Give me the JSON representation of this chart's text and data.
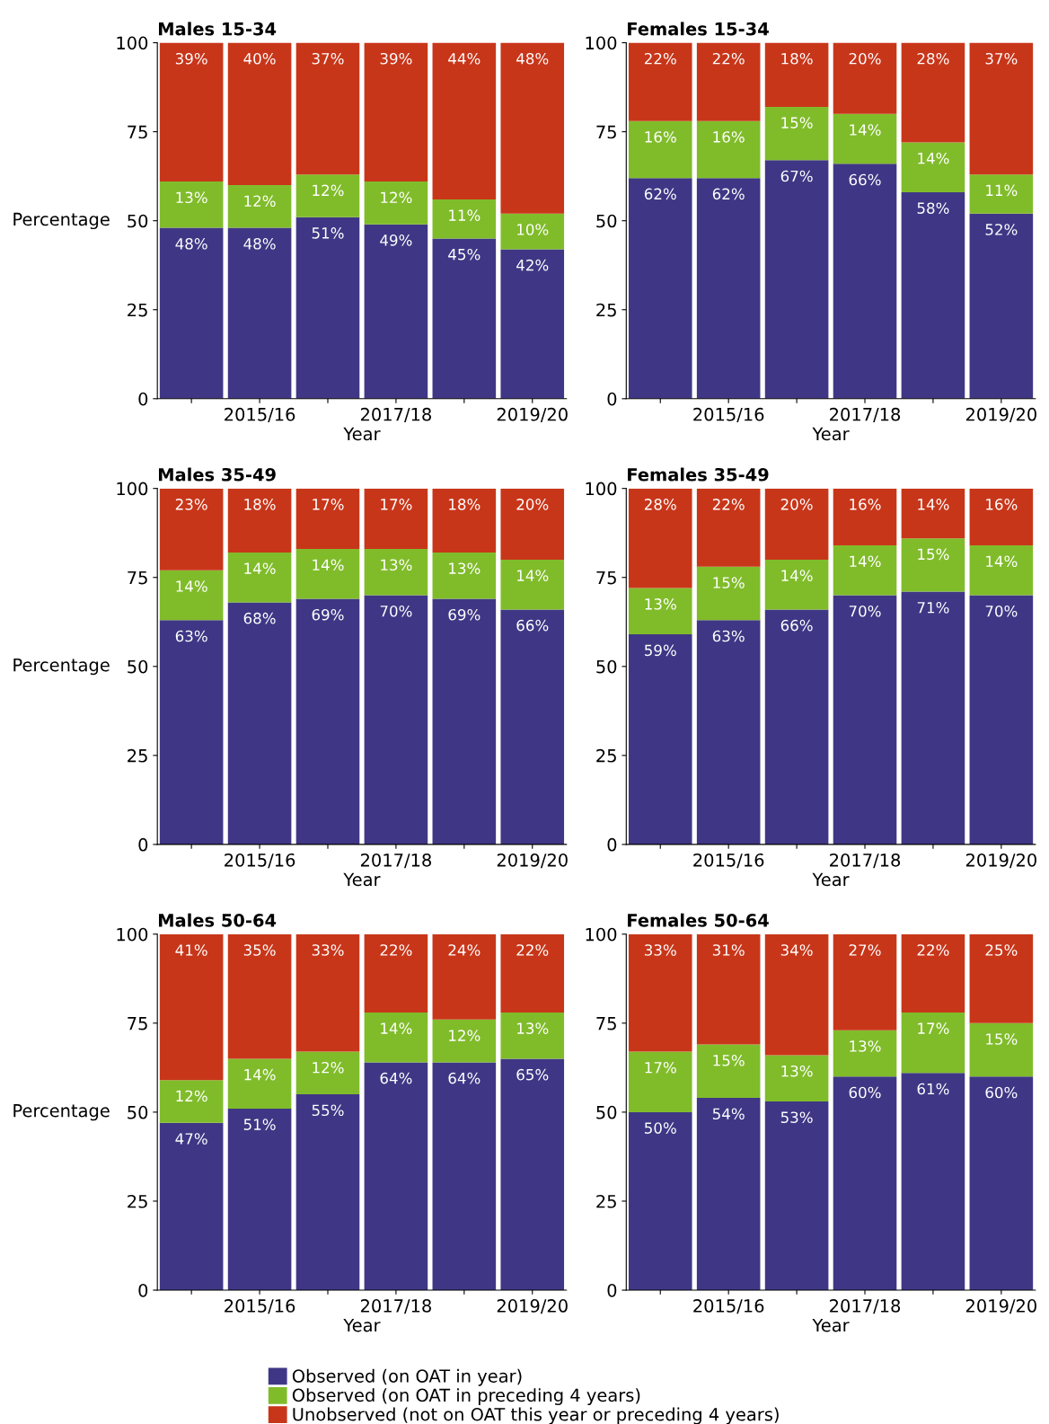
{
  "chart_data": [
    {
      "type": "bar",
      "stacked": true,
      "title": "Males 15-34",
      "xlabel": "Year",
      "ylabel": "Percentage",
      "categories": [
        null,
        "2015/16",
        null,
        "2017/18",
        null,
        "2019/20"
      ],
      "ylim": [
        0,
        100
      ],
      "yticks": [
        0,
        25,
        50,
        75,
        100
      ],
      "grid": false,
      "legend": "bottom",
      "series": [
        {
          "name": "Observed (on OAT in year)",
          "color": "#3f3785",
          "values": [
            48,
            48,
            51,
            49,
            45,
            42
          ],
          "value_labels": [
            "48%",
            "48%",
            "51%",
            "49%",
            "45%",
            "42%"
          ]
        },
        {
          "name": "Observed (on OAT in preceding 4 years)",
          "color": "#80bc2a",
          "values": [
            13,
            12,
            12,
            12,
            11,
            10
          ],
          "value_labels": [
            "13%",
            "12%",
            "12%",
            "12%",
            "11%",
            "10%"
          ]
        },
        {
          "name": "Unobserved (not on OAT this year or preceding 4 years)",
          "color": "#c8361a",
          "values": [
            39,
            40,
            37,
            39,
            44,
            48
          ],
          "value_labels": [
            "39%",
            "40%",
            "37%",
            "39%",
            "44%",
            "48%"
          ]
        }
      ]
    },
    {
      "type": "bar",
      "stacked": true,
      "title": "Females 15-34",
      "xlabel": "Year",
      "categories": [
        null,
        "2015/16",
        null,
        "2017/18",
        null,
        "2019/20"
      ],
      "ylim": [
        0,
        100
      ],
      "yticks": [
        0,
        25,
        50,
        75,
        100
      ],
      "grid": false,
      "series": [
        {
          "color": "#3f3785",
          "values": [
            62,
            62,
            67,
            66,
            58,
            52
          ],
          "value_labels": [
            "62%",
            "62%",
            "67%",
            "66%",
            "58%",
            "52%"
          ]
        },
        {
          "color": "#80bc2a",
          "values": [
            16,
            16,
            15,
            14,
            14,
            11
          ],
          "value_labels": [
            "16%",
            "16%",
            "15%",
            "14%",
            "14%",
            "11%"
          ]
        },
        {
          "color": "#c8361a",
          "values": [
            22,
            22,
            18,
            20,
            28,
            37
          ],
          "value_labels": [
            "22%",
            "22%",
            "18%",
            "20%",
            "28%",
            "37%"
          ]
        }
      ]
    },
    {
      "type": "bar",
      "stacked": true,
      "title": "Males 35-49",
      "xlabel": "Year",
      "ylabel": "Percentage",
      "categories": [
        null,
        "2015/16",
        null,
        "2017/18",
        null,
        "2019/20"
      ],
      "ylim": [
        0,
        100
      ],
      "yticks": [
        0,
        25,
        50,
        75,
        100
      ],
      "grid": false,
      "series": [
        {
          "color": "#3f3785",
          "values": [
            63,
            68,
            69,
            70,
            69,
            66
          ],
          "value_labels": [
            "63%",
            "68%",
            "69%",
            "70%",
            "69%",
            "66%"
          ]
        },
        {
          "color": "#80bc2a",
          "values": [
            14,
            14,
            14,
            13,
            13,
            14
          ],
          "value_labels": [
            "14%",
            "14%",
            "14%",
            "13%",
            "13%",
            "14%"
          ]
        },
        {
          "color": "#c8361a",
          "values": [
            23,
            18,
            17,
            17,
            18,
            20
          ],
          "value_labels": [
            "23%",
            "18%",
            "17%",
            "17%",
            "18%",
            "20%"
          ]
        }
      ]
    },
    {
      "type": "bar",
      "stacked": true,
      "title": "Females 35-49",
      "xlabel": "Year",
      "categories": [
        null,
        "2015/16",
        null,
        "2017/18",
        null,
        "2019/20"
      ],
      "ylim": [
        0,
        100
      ],
      "yticks": [
        0,
        25,
        50,
        75,
        100
      ],
      "grid": false,
      "series": [
        {
          "color": "#3f3785",
          "values": [
            59,
            63,
            66,
            70,
            71,
            70
          ],
          "value_labels": [
            "59%",
            "63%",
            "66%",
            "70%",
            "71%",
            "70%"
          ]
        },
        {
          "color": "#80bc2a",
          "values": [
            13,
            15,
            14,
            14,
            15,
            14
          ],
          "value_labels": [
            "13%",
            "15%",
            "14%",
            "14%",
            "15%",
            "14%"
          ]
        },
        {
          "color": "#c8361a",
          "values": [
            28,
            22,
            20,
            16,
            14,
            16
          ],
          "value_labels": [
            "28%",
            "22%",
            "20%",
            "16%",
            "14%",
            "16%"
          ]
        }
      ]
    },
    {
      "type": "bar",
      "stacked": true,
      "title": "Males 50-64",
      "xlabel": "Year",
      "ylabel": "Percentage",
      "categories": [
        null,
        "2015/16",
        null,
        "2017/18",
        null,
        "2019/20"
      ],
      "ylim": [
        0,
        100
      ],
      "yticks": [
        0,
        25,
        50,
        75,
        100
      ],
      "grid": false,
      "series": [
        {
          "color": "#3f3785",
          "values": [
            47,
            51,
            55,
            64,
            64,
            65
          ],
          "value_labels": [
            "47%",
            "51%",
            "55%",
            "64%",
            "64%",
            "65%"
          ]
        },
        {
          "color": "#80bc2a",
          "values": [
            12,
            14,
            12,
            14,
            12,
            13
          ],
          "value_labels": [
            "12%",
            "14%",
            "12%",
            "14%",
            "12%",
            "13%"
          ]
        },
        {
          "color": "#c8361a",
          "values": [
            41,
            35,
            33,
            22,
            24,
            22
          ],
          "value_labels": [
            "41%",
            "35%",
            "33%",
            "22%",
            "24%",
            "22%"
          ]
        }
      ]
    },
    {
      "type": "bar",
      "stacked": true,
      "title": "Females 50-64",
      "xlabel": "Year",
      "categories": [
        null,
        "2015/16",
        null,
        "2017/18",
        null,
        "2019/20"
      ],
      "ylim": [
        0,
        100
      ],
      "yticks": [
        0,
        25,
        50,
        75,
        100
      ],
      "grid": false,
      "series": [
        {
          "color": "#3f3785",
          "values": [
            50,
            54,
            53,
            60,
            61,
            60
          ],
          "value_labels": [
            "50%",
            "54%",
            "53%",
            "60%",
            "61%",
            "60%"
          ]
        },
        {
          "color": "#80bc2a",
          "values": [
            17,
            15,
            13,
            13,
            17,
            15
          ],
          "value_labels": [
            "17%",
            "15%",
            "13%",
            "13%",
            "17%",
            "15%"
          ]
        },
        {
          "color": "#c8361a",
          "values": [
            33,
            31,
            34,
            27,
            22,
            25
          ],
          "value_labels": [
            "33%",
            "31%",
            "34%",
            "27%",
            "22%",
            "25%"
          ]
        }
      ]
    }
  ]
}
